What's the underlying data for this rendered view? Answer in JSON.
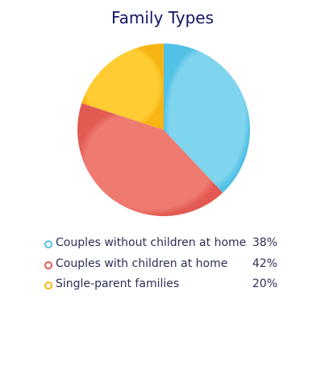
{
  "chart_data": {
    "type": "pie",
    "title": "Family Types",
    "slices": [
      {
        "label": "Couples without children at home",
        "value": 38,
        "display": "38%",
        "color": "#7fd4ee",
        "shade": "#52c1e6"
      },
      {
        "label": "Couples with children at home",
        "value": 42,
        "display": "42%",
        "color": "#ee7a70",
        "shade": "#e25a52"
      },
      {
        "label": "Single-parent families",
        "value": 20,
        "display": "20%",
        "color": "#ffcc33",
        "shade": "#f6b512"
      }
    ],
    "legend_position": "bottom"
  }
}
